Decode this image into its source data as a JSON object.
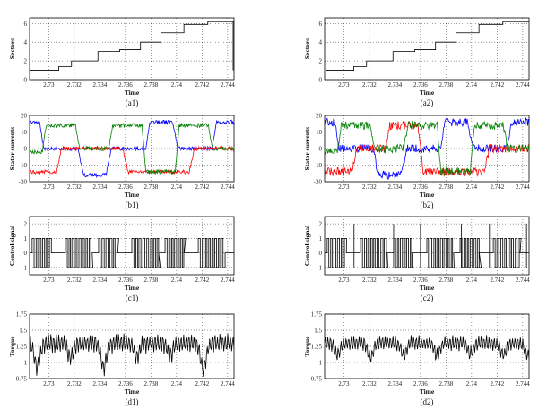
{
  "chart_data": [
    {
      "caption": "(a1)",
      "type": "line",
      "xlabel": "Time",
      "ylabel": "Sectors",
      "xlim": [
        2.7285,
        2.7445
      ],
      "ylim": [
        0,
        6.6
      ],
      "xticks": [
        "2.73",
        "2.732",
        "2.734",
        "2.736",
        "2.738",
        "2.74",
        "2.742",
        "2.744"
      ],
      "yticks": [
        "0",
        "2",
        "4",
        "6"
      ],
      "ytick_values": [
        0,
        2,
        4,
        6
      ],
      "grid": true,
      "series": [
        {
          "color": "#000000",
          "step": true,
          "x": [
            2.7285,
            2.73078,
            2.73078,
            2.73178,
            2.73178,
            2.73385,
            2.73385,
            2.73555,
            2.73555,
            2.73718,
            2.73718,
            2.73878,
            2.73878,
            2.74058,
            2.74058,
            2.74245,
            2.74245,
            2.74443,
            2.74443
          ],
          "y": [
            1,
            1,
            1.4,
            1.4,
            2,
            2,
            3,
            3,
            3.2,
            3.2,
            4,
            4,
            5,
            5,
            5.9,
            5.9,
            6.2,
            6.2,
            1
          ]
        }
      ]
    },
    {
      "caption": "(a2)",
      "type": "line",
      "xlabel": "Time",
      "ylabel": "Sectors",
      "xlim": [
        2.7285,
        2.7445
      ],
      "ylim": [
        0,
        6.6
      ],
      "xticks": [
        "2.73",
        "2.732",
        "2.734",
        "2.736",
        "2.738",
        "2.74",
        "2.742",
        "2.744"
      ],
      "yticks": [
        "0",
        "2",
        "4",
        "6"
      ],
      "ytick_values": [
        0,
        2,
        4,
        6
      ],
      "grid": true,
      "series": [
        {
          "color": "#000000",
          "step": true,
          "x": [
            2.7285,
            2.7286,
            2.7286,
            2.73078,
            2.73078,
            2.73178,
            2.73178,
            2.73385,
            2.73385,
            2.73555,
            2.73555,
            2.73718,
            2.73718,
            2.73878,
            2.73878,
            2.74058,
            2.74058,
            2.74245,
            2.74245,
            2.7445
          ],
          "y": [
            6,
            6,
            1,
            1,
            1.4,
            1.4,
            2,
            2,
            3,
            3,
            3.2,
            3.2,
            4,
            4,
            5,
            5,
            5.9,
            5.9,
            6.2,
            6.2
          ]
        }
      ]
    },
    {
      "caption": "(b1)",
      "type": "line",
      "xlabel": "Time",
      "ylabel": "Stator currents",
      "xlim": [
        2.7285,
        2.7445
      ],
      "ylim": [
        -20,
        20
      ],
      "xticks": [
        "2.73",
        "2.732",
        "2.734",
        "2.736",
        "2.738",
        "2.74",
        "2.742",
        "2.744"
      ],
      "yticks": [
        "-20",
        "-10",
        "0",
        "10",
        "20"
      ],
      "ytick_values": [
        -20,
        -10,
        0,
        10,
        20
      ],
      "grid": true,
      "series": [
        {
          "color": "#0000ff",
          "noise": 1.2,
          "x": [
            2.7285,
            2.7293,
            2.7296,
            2.7323,
            2.7327,
            2.7345,
            2.7349,
            2.7376,
            2.7379,
            2.7397,
            2.7401,
            2.7428,
            2.7431,
            2.7445
          ],
          "y": [
            16,
            16,
            0,
            0,
            -16,
            -16,
            0,
            0,
            16,
            16,
            0,
            0,
            16,
            16
          ]
        },
        {
          "color": "#ff0000",
          "noise": 1.2,
          "x": [
            2.7285,
            2.7306,
            2.731,
            2.7358,
            2.7362,
            2.741,
            2.7414,
            2.7445
          ],
          "y": [
            -14,
            -14,
            0,
            0,
            -14,
            -14,
            0,
            0
          ]
        },
        {
          "color": "#008000",
          "noise": 1.2,
          "x": [
            2.7285,
            2.7295,
            2.7298,
            2.7321,
            2.7324,
            2.7347,
            2.735,
            2.7373,
            2.7376,
            2.7399,
            2.7402,
            2.7425,
            2.7428,
            2.7445
          ],
          "y": [
            -2,
            -2,
            14,
            14,
            0,
            0,
            14,
            14,
            -14,
            -14,
            14,
            14,
            0,
            0
          ]
        }
      ]
    },
    {
      "caption": "(b2)",
      "type": "line",
      "xlabel": "Time",
      "ylabel": "Stator currents",
      "xlim": [
        2.7285,
        2.7445
      ],
      "ylim": [
        -20,
        20
      ],
      "xticks": [
        "2.73",
        "2.732",
        "2.734",
        "2.736",
        "2.738",
        "2.74",
        "2.742",
        "2.744"
      ],
      "yticks": [
        "-20",
        "-10",
        "0",
        "10",
        "20"
      ],
      "ytick_values": [
        -20,
        -10,
        0,
        10,
        20
      ],
      "grid": true,
      "series": [
        {
          "color": "#0000ff",
          "noise": 2.5,
          "x": [
            2.7285,
            2.7293,
            2.7296,
            2.7323,
            2.7327,
            2.7345,
            2.7349,
            2.7376,
            2.7379,
            2.7397,
            2.7401,
            2.7428,
            2.7431,
            2.7445
          ],
          "y": [
            16,
            16,
            0,
            0,
            -16,
            -16,
            0,
            0,
            16,
            16,
            0,
            0,
            16,
            16
          ]
        },
        {
          "color": "#ff0000",
          "noise": 2.5,
          "x": [
            2.7285,
            2.7306,
            2.731,
            2.7333,
            2.7336,
            2.7358,
            2.7362,
            2.741,
            2.7414,
            2.7445
          ],
          "y": [
            -14,
            -14,
            0,
            0,
            14,
            14,
            -14,
            -14,
            0,
            0
          ]
        },
        {
          "color": "#008000",
          "noise": 2.5,
          "x": [
            2.7285,
            2.7295,
            2.7298,
            2.7321,
            2.7324,
            2.7347,
            2.735,
            2.7373,
            2.7376,
            2.7399,
            2.7402,
            2.7425,
            2.7428,
            2.7445
          ],
          "y": [
            -2,
            -2,
            14,
            14,
            0,
            0,
            14,
            14,
            -14,
            -14,
            14,
            14,
            0,
            0
          ]
        }
      ]
    },
    {
      "caption": "(c1)",
      "type": "line",
      "xlabel": "Time",
      "ylabel": "Control signal",
      "xlim": [
        2.7285,
        2.7445
      ],
      "ylim": [
        -1.5,
        2.5
      ],
      "xticks": [
        "2.73",
        "2.732",
        "2.734",
        "2.736",
        "2.738",
        "2.74",
        "2.742",
        "2.744"
      ],
      "yticks": [
        "-1",
        "0",
        "1",
        "2"
      ],
      "ytick_values": [
        -1,
        0,
        1,
        2
      ],
      "grid": true,
      "series": [
        {
          "color": "#000000",
          "switching": true,
          "levels": [
            -1,
            1
          ],
          "bursts": [
            [
              2.7287,
              2.7302
            ],
            [
              2.7313,
              2.7334
            ],
            [
              2.7339,
              2.7354
            ],
            [
              2.7365,
              2.7386
            ],
            [
              2.7391,
              2.7406
            ],
            [
              2.7417,
              2.7438
            ]
          ],
          "period": 0.00026
        }
      ]
    },
    {
      "caption": "(c2)",
      "type": "line",
      "xlabel": "Time",
      "ylabel": "Control signal",
      "xlim": [
        2.7285,
        2.7445
      ],
      "ylim": [
        -1.5,
        2.5
      ],
      "xticks": [
        "2.73",
        "2.732",
        "2.734",
        "2.736",
        "2.738",
        "2.74",
        "2.742",
        "2.744"
      ],
      "yticks": [
        "-1",
        "0",
        "1",
        "2"
      ],
      "ytick_values": [
        -1,
        0,
        1,
        2
      ],
      "grid": true,
      "series": [
        {
          "color": "#000000",
          "switching": true,
          "levels": [
            -1,
            1
          ],
          "spikes": [
            2.7286,
            2.7308,
            2.7339,
            2.736,
            2.7392,
            2.7414,
            2.7443
          ],
          "bursts": [
            [
              2.7287,
              2.7302
            ],
            [
              2.7313,
              2.7334
            ],
            [
              2.7339,
              2.7354
            ],
            [
              2.7365,
              2.7386
            ],
            [
              2.7391,
              2.7406
            ],
            [
              2.7417,
              2.7438
            ]
          ],
          "period": 0.00026
        }
      ]
    },
    {
      "caption": "(d1)",
      "type": "line",
      "xlabel": "Time",
      "ylabel": "Torque",
      "xlim": [
        2.7285,
        2.7445
      ],
      "ylim": [
        0.75,
        1.75
      ],
      "xticks": [
        "2.73",
        "2.732",
        "2.734",
        "2.736",
        "2.738",
        "2.74",
        "2.742",
        "2.744"
      ],
      "yticks": [
        "0.75",
        "1",
        "1.25",
        "1.5",
        "1.75"
      ],
      "ytick_values": [
        0.75,
        1,
        1.25,
        1.5,
        1.75
      ],
      "grid": true,
      "series": [
        {
          "color": "#000000",
          "torque": true,
          "dips": [
            [
              2.7291,
              0.92
            ],
            [
              2.7317,
              1.08
            ],
            [
              2.7343,
              0.93
            ],
            [
              2.7369,
              1.1
            ],
            [
              2.7395,
              1.12
            ],
            [
              2.7421,
              0.9
            ]
          ],
          "mean": 1.3,
          "ripple": 0.15
        }
      ]
    },
    {
      "caption": "(d2)",
      "type": "line",
      "xlabel": "Time",
      "ylabel": "Torque",
      "xlim": [
        2.7285,
        2.7445
      ],
      "ylim": [
        0.75,
        1.75
      ],
      "xticks": [
        "2.73",
        "2.732",
        "2.734",
        "2.736",
        "2.738",
        "2.74",
        "2.742",
        "2.744"
      ],
      "yticks": [
        "0.75",
        "1",
        "1.25",
        "1.5",
        "1.75"
      ],
      "ytick_values": [
        0.75,
        1,
        1.25,
        1.5,
        1.75
      ],
      "grid": true,
      "series": [
        {
          "color": "#000000",
          "torque": true,
          "dips": [
            [
              2.7295,
              1.12
            ],
            [
              2.7321,
              1.08
            ],
            [
              2.7347,
              1.12
            ],
            [
              2.7373,
              1.1
            ],
            [
              2.7399,
              1.13
            ],
            [
              2.7425,
              1.12
            ],
            [
              2.7444,
              1.1
            ]
          ],
          "mean": 1.3,
          "ripple": 0.12
        }
      ]
    }
  ]
}
